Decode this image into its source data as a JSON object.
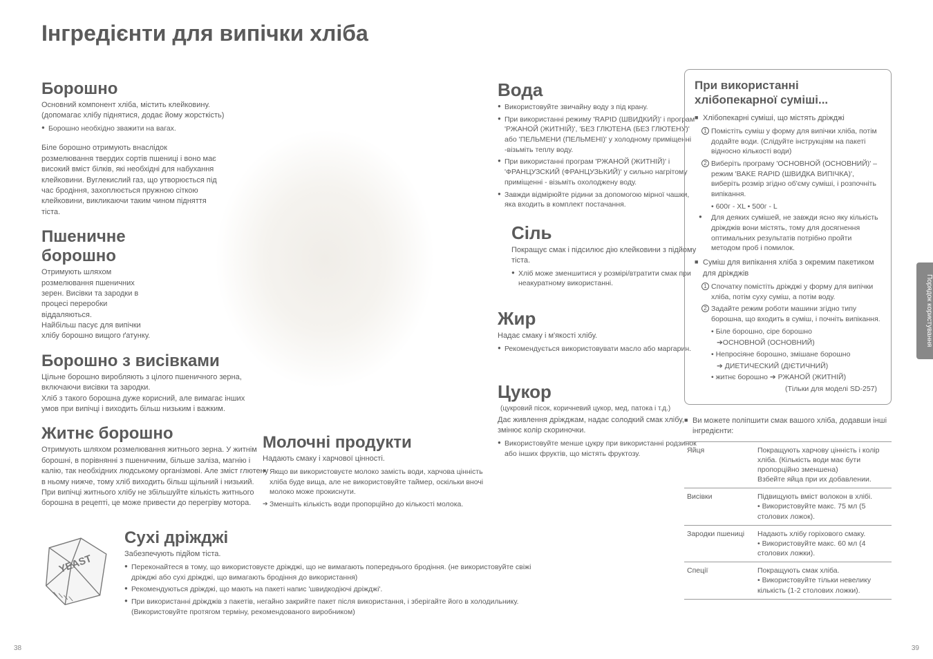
{
  "title": "Інгредієнти для випічки хліба",
  "pageLeft": "38",
  "pageRight": "39",
  "sideTab": "Порядок користування",
  "flour": {
    "h": "Борошно",
    "sub": "Основний компонент хліба, містить клейковину. (допомагає хлібу піднятися, додає йому жорсткість)",
    "b1": "Борошно необхідно зважити на вагах.",
    "p": "Біле борошно отримують внаслідок розмелювання твердих сортів пшениці і воно має високий вміст білків, які необхідні для набухання клейковини. Вуглекислий газ, що утворюється під час бродіння, захоплюється пружною сіткою клейковини, викликаючи таким чином підняття тіста."
  },
  "wheat": {
    "h": "Пшеничне борошно",
    "p": "Отримують шляхом розмелювання пшеничних зерен. Висівки та зародки в процесі переробки віддаляються.\nНайбільш пасує для випічки хлібу борошно вищого ґатунку."
  },
  "bran": {
    "h": "Борошно з висівками",
    "p": "Цільне борошно виробляють з цілого пшеничного зерна, включаючи висівки та зародки.\nХліб з такого борошна дуже корисний, але вимагає інших умов при  випічці і виходить більш низьким і важким."
  },
  "rye": {
    "h": "Житнє борошно",
    "p": "Отримують шляхом розмелювання житнього зерна. У житнім борошні, в порівнянні з пшеничним, більше заліза, магнію і калію, так необхідних людському організмові. Але зміст глютену в ньому нижче, тому хліб виходить більш щільний і низький. При випічці житнього хлібу не збільшуйте кількість житнього борошна в рецепті, це може привести до перегріву мотора."
  },
  "dairy": {
    "h": "Молочні продукти",
    "sub": "Надають смаку і харчової цінності.",
    "b1": "Якщо ви використовуєте молоко замість води, харчова цінність хліба буде вища, але не використовуйте таймер, оскільки вночі молоко може прокиснути.",
    "a1": "Зменшіть кількість води пропорційно до кількості молока."
  },
  "yeast": {
    "h": "Сухі дріжджі",
    "sub": "Забезпечують підйом тіста.",
    "b1": "Переконайтеся в тому, що використовуєте дріжджі, що не вимагають попереднього бродіння. (не використовуйте свіжі дріжджі або сухі дріжджі, що вимагають бродіння до використання)",
    "b2": "Рекомендуються дріжджі, що мають на пакеті напис 'швидкодіючі дріжджі'.",
    "b3": "При використанні дріжджів з пакетів, негайно закрийте пакет після використання, і зберігайте його в холодильнику. (Використовуйте протягом терміну, рекомендованого виробником)"
  },
  "water": {
    "h": "Вода",
    "b1": "Використовуйте звичайну воду з під крану.",
    "b2": "При використанні режиму 'RAPID (ШВИДКИЙ)' і програм 'РЖАНОЙ (ЖИТНІЙ)', 'БЕЗ ГЛЮТЕНА (БЕЗ ГЛЮТЕНУ)' або 'ПЕЛЬМЕНИ (ПЕЛЬМЕНІ)' у холодному приміщенні -візьміть теплу воду.",
    "b3": "При використанні програм 'РЖАНОЙ (ЖИТНІЙ)' і 'ФРАНЦУЗСКИЙ (ФРАНЦУЗЬКИЙ)' у сильно нагрітому приміщенні - візьміть охолоджену воду.",
    "b4": "Завжди відмірюйте рідини за допомогою мірної чашки, яка входить в комплект постачання."
  },
  "salt": {
    "h": "Сіль",
    "sub": "Покращує смак і підсилює дію клейковини з підйому тіста.",
    "b1": "Хліб може зменшитися у розмірі/втратити смак при неакуратному використанні."
  },
  "fat": {
    "h": "Жир",
    "sub": "Надає смаку і м'якості хлібу.",
    "b1": "Рекомендується використовувати масло або маргарин."
  },
  "sugar": {
    "h": "Цукор",
    "inline": "(цукровий пісок, коричневий цукор, мед, патока і т.д.)",
    "sub": "Дає живлення дріжджам, надає солодкий смак хлібу, змінює колір скориночки.",
    "b1": "Використовуйте менше цукру при використанні родзинок або інших фруктів, що містять фруктозу."
  },
  "mix": {
    "h": "При використанні хлібопекарної суміші...",
    "s1": "Хлібопекарні суміші, що містять дріжджі",
    "n1": "Помістіть суміш у форму для випічки хліба, потім додайте води. (Слідуйте інструкціям на пакеті відносно кількості води)",
    "n2": "Виберіть програму 'ОСНОВНОЙ (ОСНОВНИЙ)' – режим 'BAKE RAPID (ШВИДКА ВИПІЧКА)', виберіть розмір згідно об'єму суміші, і розпочніть випікання.",
    "n2b": "• 600г - XL    • 500г - L",
    "b1": "Для деяких сумішей, не завжди ясно яку кількість дріжджів вони містять, тому для досягнення оптимальних результатів потрібно пройти методом проб і помилок.",
    "s2": "Суміш для випікання хліба з окремим пакетиком для дріжджів",
    "n3": "Спочатку помістіть дріжджі у форму для випічки хліба, потім суху суміш, а потім воду.",
    "n4": "Задайте режим роботи машини згідно типу борошна, що входить в суміш, і почніть випікання.",
    "i1": "• Біле борошно, сіре борошно",
    "i1a": "➔ОСНОВНОЙ (ОСНОВНИЙ)",
    "i2": "• Непросіяне борошно, змішане борошно",
    "i2a": "➔ ДИЕТИЧЕСКИЙ (ДІЄТИЧНИЙ)",
    "i3": "• житнє борошно ➔ РЖАНОЙ (ЖИТНІЙ)",
    "i3b": "(Тільки для моделі SD-257)"
  },
  "improve": {
    "s": "Ви можете поліпшити смак вашого хліба, додавши інші інгредієнти:",
    "rows": [
      [
        "Яйця",
        "Покращують харчову цінність і колір хліба. (Кількість води має бути пропорційно зменшена)\nВзбейте яйца при их добавлении."
      ],
      [
        "Висівки",
        "Підвищують вміст волокон в хлібі.\n• Використовуйте макс. 75 мл  (5 столових ложок)."
      ],
      [
        "Зародки пшениці",
        "Надають хлібу горіхового смаку.\n• Використовуйте макс. 60 мл  (4 столових ложки)."
      ],
      [
        "Спеції",
        "Покращують смак хліба.\n• Використовуйте тільки невелику  кількість (1-2 столових ложки)."
      ]
    ]
  }
}
